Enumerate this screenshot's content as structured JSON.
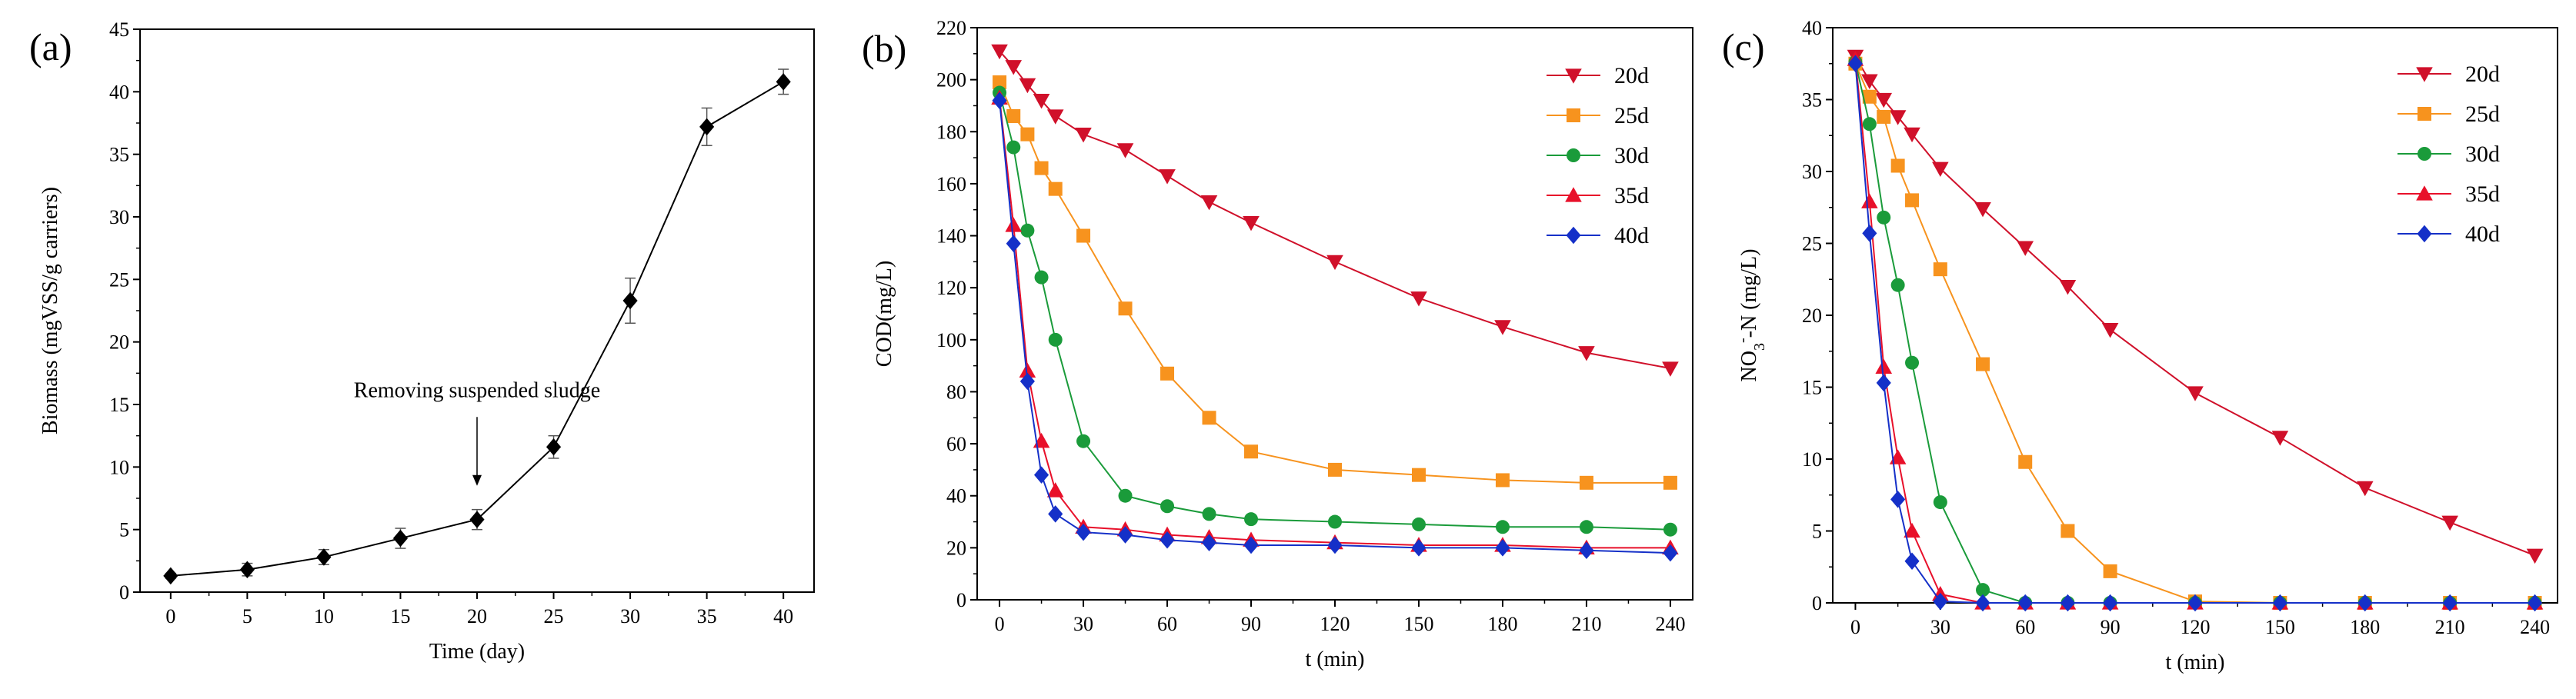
{
  "chart_data": [
    {
      "type": "line",
      "panel_label": "(a)",
      "xlabel": "Time (day)",
      "ylabel": "Biomass (mgVSS/g carriers)",
      "xlim": [
        -2,
        42
      ],
      "ylim": [
        0,
        45
      ],
      "xticks": [
        0,
        5,
        10,
        15,
        20,
        25,
        30,
        35,
        40
      ],
      "yticks": [
        0,
        5,
        10,
        15,
        20,
        25,
        30,
        35,
        40,
        45
      ],
      "color": "#000000",
      "marker": "diamond",
      "x": [
        0,
        5,
        10,
        15,
        20,
        25,
        30,
        35,
        40
      ],
      "y": [
        1.3,
        1.8,
        2.8,
        4.3,
        5.8,
        11.6,
        23.3,
        37.2,
        40.8
      ],
      "yerr": [
        0.2,
        0.5,
        0.6,
        0.8,
        0.8,
        0.9,
        1.8,
        1.5,
        1.0
      ],
      "annotation": {
        "text": "Removing suspended sludge",
        "x": 20,
        "arrow_from_y": 14.0,
        "arrow_to_y": 8.5
      }
    },
    {
      "type": "line",
      "panel_label": "(b)",
      "xlabel": "t (min)",
      "ylabel": "COD(mg/L)",
      "xlim": [
        -8,
        248
      ],
      "ylim": [
        0,
        220
      ],
      "xticks": [
        0,
        30,
        60,
        90,
        120,
        150,
        180,
        210,
        240
      ],
      "yticks": [
        0,
        20,
        40,
        60,
        80,
        100,
        120,
        140,
        160,
        180,
        200,
        220
      ],
      "legend_position": "top-right",
      "series": [
        {
          "name": "20d",
          "color": "#d0102a",
          "marker": "triangle-down",
          "x": [
            0,
            5,
            10,
            15,
            20,
            30,
            45,
            60,
            75,
            90,
            120,
            150,
            180,
            210,
            240
          ],
          "y": [
            211,
            205,
            198,
            192,
            186,
            179,
            173,
            163,
            153,
            145,
            130,
            116,
            105,
            95,
            89
          ]
        },
        {
          "name": "25d",
          "color": "#f7931e",
          "marker": "square",
          "x": [
            0,
            5,
            10,
            15,
            20,
            30,
            45,
            60,
            75,
            90,
            120,
            150,
            180,
            210,
            240
          ],
          "y": [
            199,
            186,
            179,
            166,
            158,
            140,
            112,
            87,
            70,
            57,
            50,
            48,
            46,
            45,
            45
          ]
        },
        {
          "name": "30d",
          "color": "#1a9b3a",
          "marker": "circle",
          "x": [
            0,
            5,
            10,
            15,
            20,
            30,
            45,
            60,
            75,
            90,
            120,
            150,
            180,
            210,
            240
          ],
          "y": [
            195,
            174,
            142,
            124,
            100,
            61,
            40,
            36,
            33,
            31,
            30,
            29,
            28,
            28,
            27
          ]
        },
        {
          "name": "35d",
          "color": "#e8102a",
          "marker": "triangle-up",
          "x": [
            0,
            5,
            10,
            15,
            20,
            30,
            45,
            60,
            75,
            90,
            120,
            150,
            180,
            210,
            240
          ],
          "y": [
            193,
            144,
            88,
            61,
            42,
            28,
            27,
            25,
            24,
            23,
            22,
            21,
            21,
            20,
            20
          ]
        },
        {
          "name": "40d",
          "color": "#1530c8",
          "marker": "diamond",
          "x": [
            0,
            5,
            10,
            15,
            20,
            30,
            45,
            60,
            75,
            90,
            120,
            150,
            180,
            210,
            240
          ],
          "y": [
            192,
            137,
            84,
            48,
            33,
            26,
            25,
            23,
            22,
            21,
            21,
            20,
            20,
            19,
            18
          ]
        }
      ]
    },
    {
      "type": "line",
      "panel_label": "(c)",
      "xlabel": "t (min)",
      "ylabel_main": "NO",
      "ylabel_sub": "3",
      "ylabel_sup": "-",
      "ylabel_tail": "-N (mg/L)",
      "xlim": [
        -8,
        248
      ],
      "ylim": [
        0,
        40
      ],
      "xticks": [
        0,
        30,
        60,
        90,
        120,
        150,
        180,
        210,
        240
      ],
      "yticks": [
        0,
        5,
        10,
        15,
        20,
        25,
        30,
        35,
        40
      ],
      "legend_position": "top-right",
      "series": [
        {
          "name": "20d",
          "color": "#d0102a",
          "marker": "triangle-down",
          "x": [
            0,
            5,
            10,
            15,
            20,
            30,
            45,
            60,
            75,
            90,
            120,
            150,
            180,
            210,
            240
          ],
          "y": [
            38.0,
            36.3,
            35.0,
            33.8,
            32.6,
            30.2,
            27.4,
            24.7,
            22.0,
            19.0,
            14.6,
            11.5,
            8.0,
            5.6,
            3.3
          ]
        },
        {
          "name": "25d",
          "color": "#f7931e",
          "marker": "square",
          "x": [
            0,
            5,
            10,
            15,
            20,
            30,
            45,
            60,
            75,
            90,
            120,
            150,
            180,
            210,
            240
          ],
          "y": [
            37.5,
            35.2,
            33.8,
            30.4,
            28.0,
            23.2,
            16.6,
            9.8,
            5.0,
            2.2,
            0.1,
            0.0,
            0.0,
            0.0,
            0.0
          ]
        },
        {
          "name": "30d",
          "color": "#1a9b3a",
          "marker": "circle",
          "x": [
            0,
            5,
            10,
            15,
            20,
            30,
            45,
            60,
            75,
            90,
            120,
            150,
            180,
            210,
            240
          ],
          "y": [
            37.6,
            33.3,
            26.8,
            22.1,
            16.7,
            7.0,
            0.9,
            0.0,
            0.0,
            0.0,
            0.0,
            0.0,
            0.0,
            0.0,
            0.0
          ]
        },
        {
          "name": "35d",
          "color": "#e8102a",
          "marker": "triangle-up",
          "x": [
            0,
            5,
            10,
            15,
            20,
            30,
            45,
            60,
            75,
            90,
            120,
            150,
            180,
            210,
            240
          ],
          "y": [
            37.8,
            27.9,
            16.4,
            10.1,
            5.0,
            0.6,
            0.0,
            0.0,
            0.0,
            0.0,
            0.0,
            0.0,
            0.0,
            0.0,
            0.0
          ]
        },
        {
          "name": "40d",
          "color": "#1530c8",
          "marker": "diamond",
          "x": [
            0,
            5,
            10,
            15,
            20,
            30,
            45,
            60,
            75,
            90,
            120,
            150,
            180,
            210,
            240
          ],
          "y": [
            37.5,
            25.7,
            15.3,
            7.2,
            2.9,
            0.1,
            0.0,
            0.0,
            0.0,
            0.0,
            0.0,
            0.0,
            0.0,
            0.0,
            0.0
          ]
        }
      ]
    }
  ]
}
